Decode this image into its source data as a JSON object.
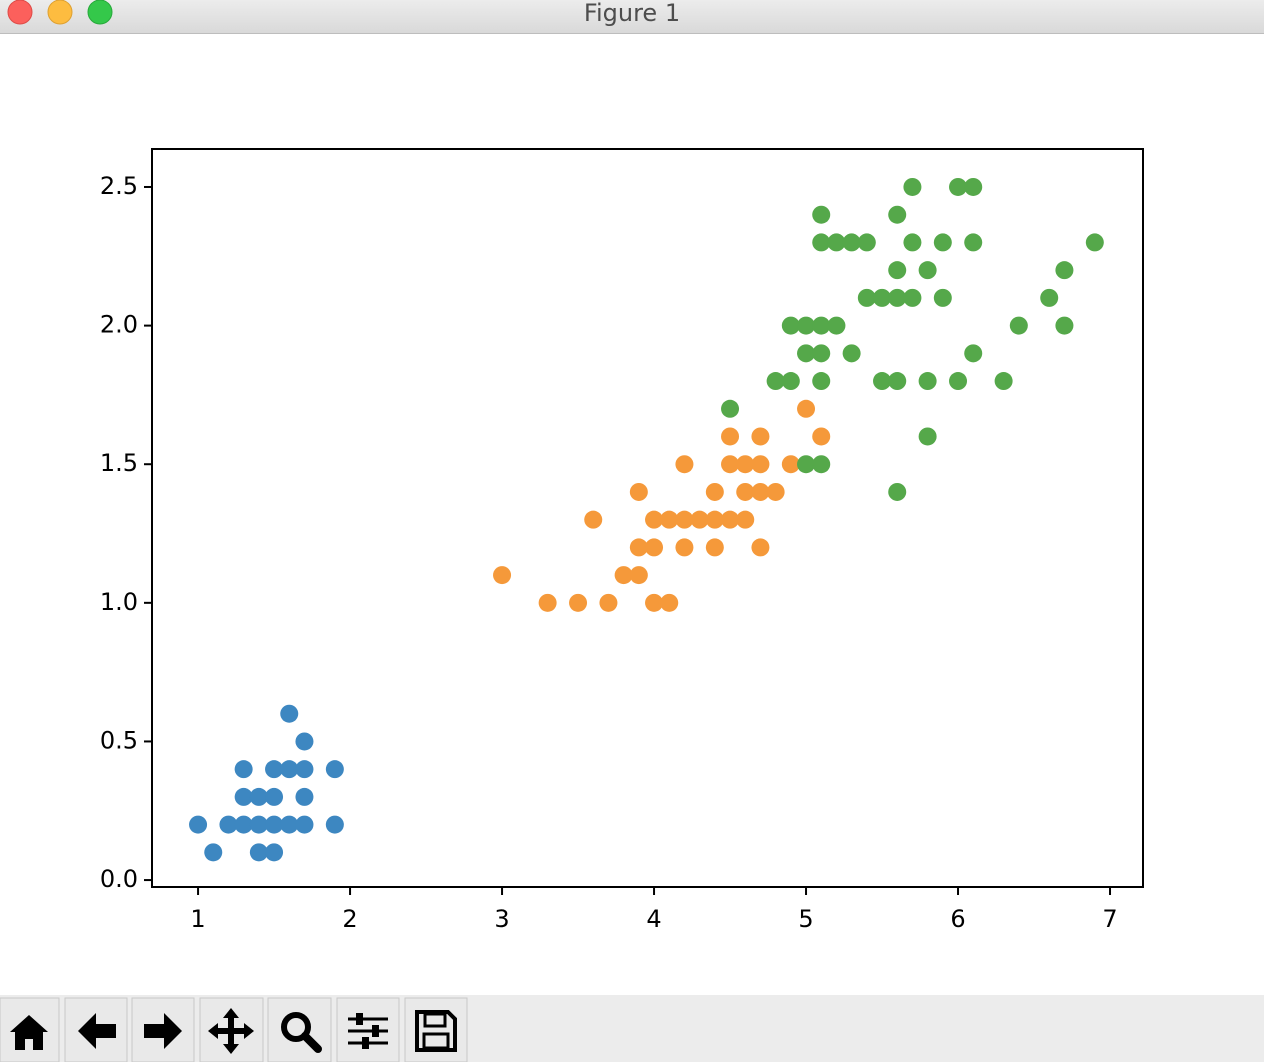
{
  "window": {
    "title": "Figure 1"
  },
  "chart_data": {
    "type": "scatter",
    "xlim": [
      0.697,
      7.217
    ],
    "ylim": [
      -0.025,
      2.637
    ],
    "xticks": [
      1,
      2,
      3,
      4,
      5,
      6,
      7
    ],
    "yticks": [
      {
        "value": 0,
        "label": "0.0"
      },
      0.5,
      {
        "value": 1,
        "label": "1.0"
      },
      1.5,
      {
        "value": 2,
        "label": "2.0"
      },
      2.5
    ],
    "grid": false,
    "series": [
      {
        "color": "#3d87c1",
        "x": [
          1.0,
          1.1,
          1.2,
          1.3,
          1.4,
          1.5,
          1.6,
          1.7,
          1.9,
          1.4,
          1.5,
          1.3,
          1.4,
          1.5,
          1.7,
          1.3,
          1.5,
          1.6,
          1.7,
          1.9,
          1.7,
          1.6
        ],
        "values": [
          0.2,
          0.1,
          0.2,
          0.2,
          0.2,
          0.2,
          0.2,
          0.2,
          0.2,
          0.1,
          0.1,
          0.3,
          0.3,
          0.3,
          0.3,
          0.4,
          0.4,
          0.4,
          0.4,
          0.4,
          0.5,
          0.6
        ]
      },
      {
        "color": "#f5993a",
        "x": [
          3.0,
          3.3,
          3.5,
          3.7,
          4.0,
          4.1,
          3.8,
          3.9,
          3.9,
          4.0,
          4.2,
          4.4,
          4.7,
          3.6,
          4.0,
          4.1,
          4.2,
          4.3,
          4.4,
          4.5,
          4.6,
          3.9,
          4.4,
          4.6,
          4.7,
          4.8,
          4.2,
          4.5,
          4.6,
          4.7,
          4.9,
          4.5,
          4.7,
          5.1,
          5.0
        ],
        "values": [
          1.1,
          1.0,
          1.0,
          1.0,
          1.0,
          1.0,
          1.1,
          1.1,
          1.2,
          1.2,
          1.2,
          1.2,
          1.2,
          1.3,
          1.3,
          1.3,
          1.3,
          1.3,
          1.3,
          1.3,
          1.3,
          1.4,
          1.4,
          1.4,
          1.4,
          1.4,
          1.5,
          1.5,
          1.5,
          1.5,
          1.5,
          1.6,
          1.6,
          1.6,
          1.7
        ]
      },
      {
        "color": "#55a84a",
        "x": [
          5.6,
          5.8,
          5.0,
          5.1,
          4.5,
          4.8,
          4.9,
          5.1,
          5.5,
          5.6,
          5.8,
          6.0,
          6.3,
          5.0,
          5.1,
          5.3,
          6.1,
          4.9,
          5.0,
          5.1,
          5.2,
          6.4,
          6.7,
          5.4,
          5.5,
          5.6,
          5.7,
          5.9,
          6.6,
          5.6,
          5.8,
          6.7,
          5.1,
          5.2,
          5.3,
          5.4,
          5.7,
          5.9,
          6.1,
          6.9,
          5.1,
          5.6,
          5.7,
          6.0,
          6.1
        ],
        "values": [
          1.4,
          1.6,
          1.5,
          1.5,
          1.7,
          1.8,
          1.8,
          1.8,
          1.8,
          1.8,
          1.8,
          1.8,
          1.8,
          1.9,
          1.9,
          1.9,
          1.9,
          2.0,
          2.0,
          2.0,
          2.0,
          2.0,
          2.0,
          2.1,
          2.1,
          2.1,
          2.1,
          2.1,
          2.1,
          2.2,
          2.2,
          2.2,
          2.3,
          2.3,
          2.3,
          2.3,
          2.3,
          2.3,
          2.3,
          2.3,
          2.4,
          2.4,
          2.5,
          2.5,
          2.5
        ]
      }
    ]
  }
}
